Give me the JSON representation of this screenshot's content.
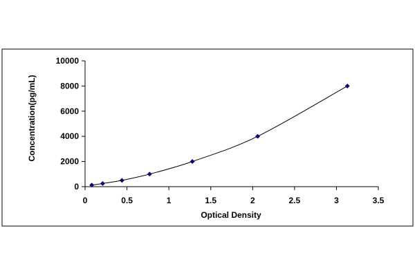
{
  "chart_data": {
    "type": "scatter",
    "title": "",
    "xlabel": "Optical Density",
    "ylabel": "Concentration(pg/mL)",
    "xlim": [
      0,
      3.5
    ],
    "ylim": [
      0,
      10000
    ],
    "x_ticks": [
      0,
      0.5,
      1,
      1.5,
      2,
      2.5,
      3,
      3.5
    ],
    "x_tick_labels": [
      "0",
      "0.5",
      "1",
      "1.5",
      "2",
      "2.5",
      "3",
      "3.5"
    ],
    "y_ticks": [
      0,
      2000,
      4000,
      6000,
      8000,
      10000
    ],
    "y_tick_labels": [
      "0",
      "2000",
      "4000",
      "6000",
      "8000",
      "10000"
    ],
    "grid": false,
    "legend": "none",
    "trendline": "smooth curve through points",
    "series": [
      {
        "name": "",
        "color": "#000080",
        "marker": "diamond",
        "x": [
          0.08,
          0.21,
          0.44,
          0.77,
          1.28,
          2.06,
          3.13
        ],
        "y": [
          125,
          250,
          500,
          1000,
          2000,
          4000,
          8000
        ]
      }
    ],
    "curve_color": "#000000"
  }
}
